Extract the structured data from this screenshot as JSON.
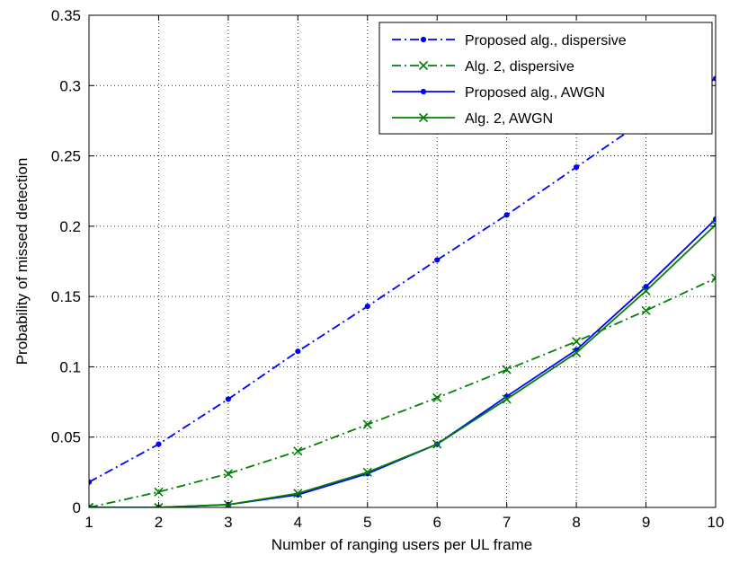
{
  "chart_data": {
    "type": "line",
    "title": "",
    "xlabel": "Number of ranging users per UL frame",
    "ylabel": "Probability of missed detection",
    "xlim": [
      1,
      10
    ],
    "ylim": [
      0,
      0.35
    ],
    "xticks": [
      "1",
      "2",
      "3",
      "4",
      "5",
      "6",
      "7",
      "8",
      "9",
      "10"
    ],
    "yticks": [
      "0",
      "0.05",
      "0.1",
      "0.15",
      "0.2",
      "0.25",
      "0.3",
      "0.35"
    ],
    "grid": true,
    "legend_position": "top-right",
    "x": [
      1,
      2,
      3,
      4,
      5,
      6,
      7,
      8,
      9,
      10
    ],
    "series": [
      {
        "name": "Proposed alg., dispersive",
        "color": "#0000ff",
        "line": "dashdot",
        "marker": "dot",
        "values": [
          0.018,
          0.045,
          0.077,
          0.111,
          0.143,
          0.176,
          0.208,
          0.242,
          0.276,
          0.305
        ]
      },
      {
        "name": "Alg. 2, dispersive",
        "color": "#008000",
        "line": "dashdot",
        "marker": "x",
        "values": [
          0.0,
          0.011,
          0.024,
          0.04,
          0.059,
          0.078,
          0.098,
          0.118,
          0.14,
          0.163
        ]
      },
      {
        "name": "Proposed alg., AWGN",
        "color": "#0000ff",
        "line": "solid",
        "marker": "dot",
        "values": [
          0.0,
          0.0,
          0.002,
          0.009,
          0.024,
          0.045,
          0.079,
          0.112,
          0.157,
          0.205
        ]
      },
      {
        "name": "Alg. 2, AWGN",
        "color": "#008000",
        "line": "solid",
        "marker": "x",
        "values": [
          0.0,
          0.0,
          0.002,
          0.01,
          0.025,
          0.045,
          0.077,
          0.11,
          0.154,
          0.201
        ]
      }
    ]
  }
}
